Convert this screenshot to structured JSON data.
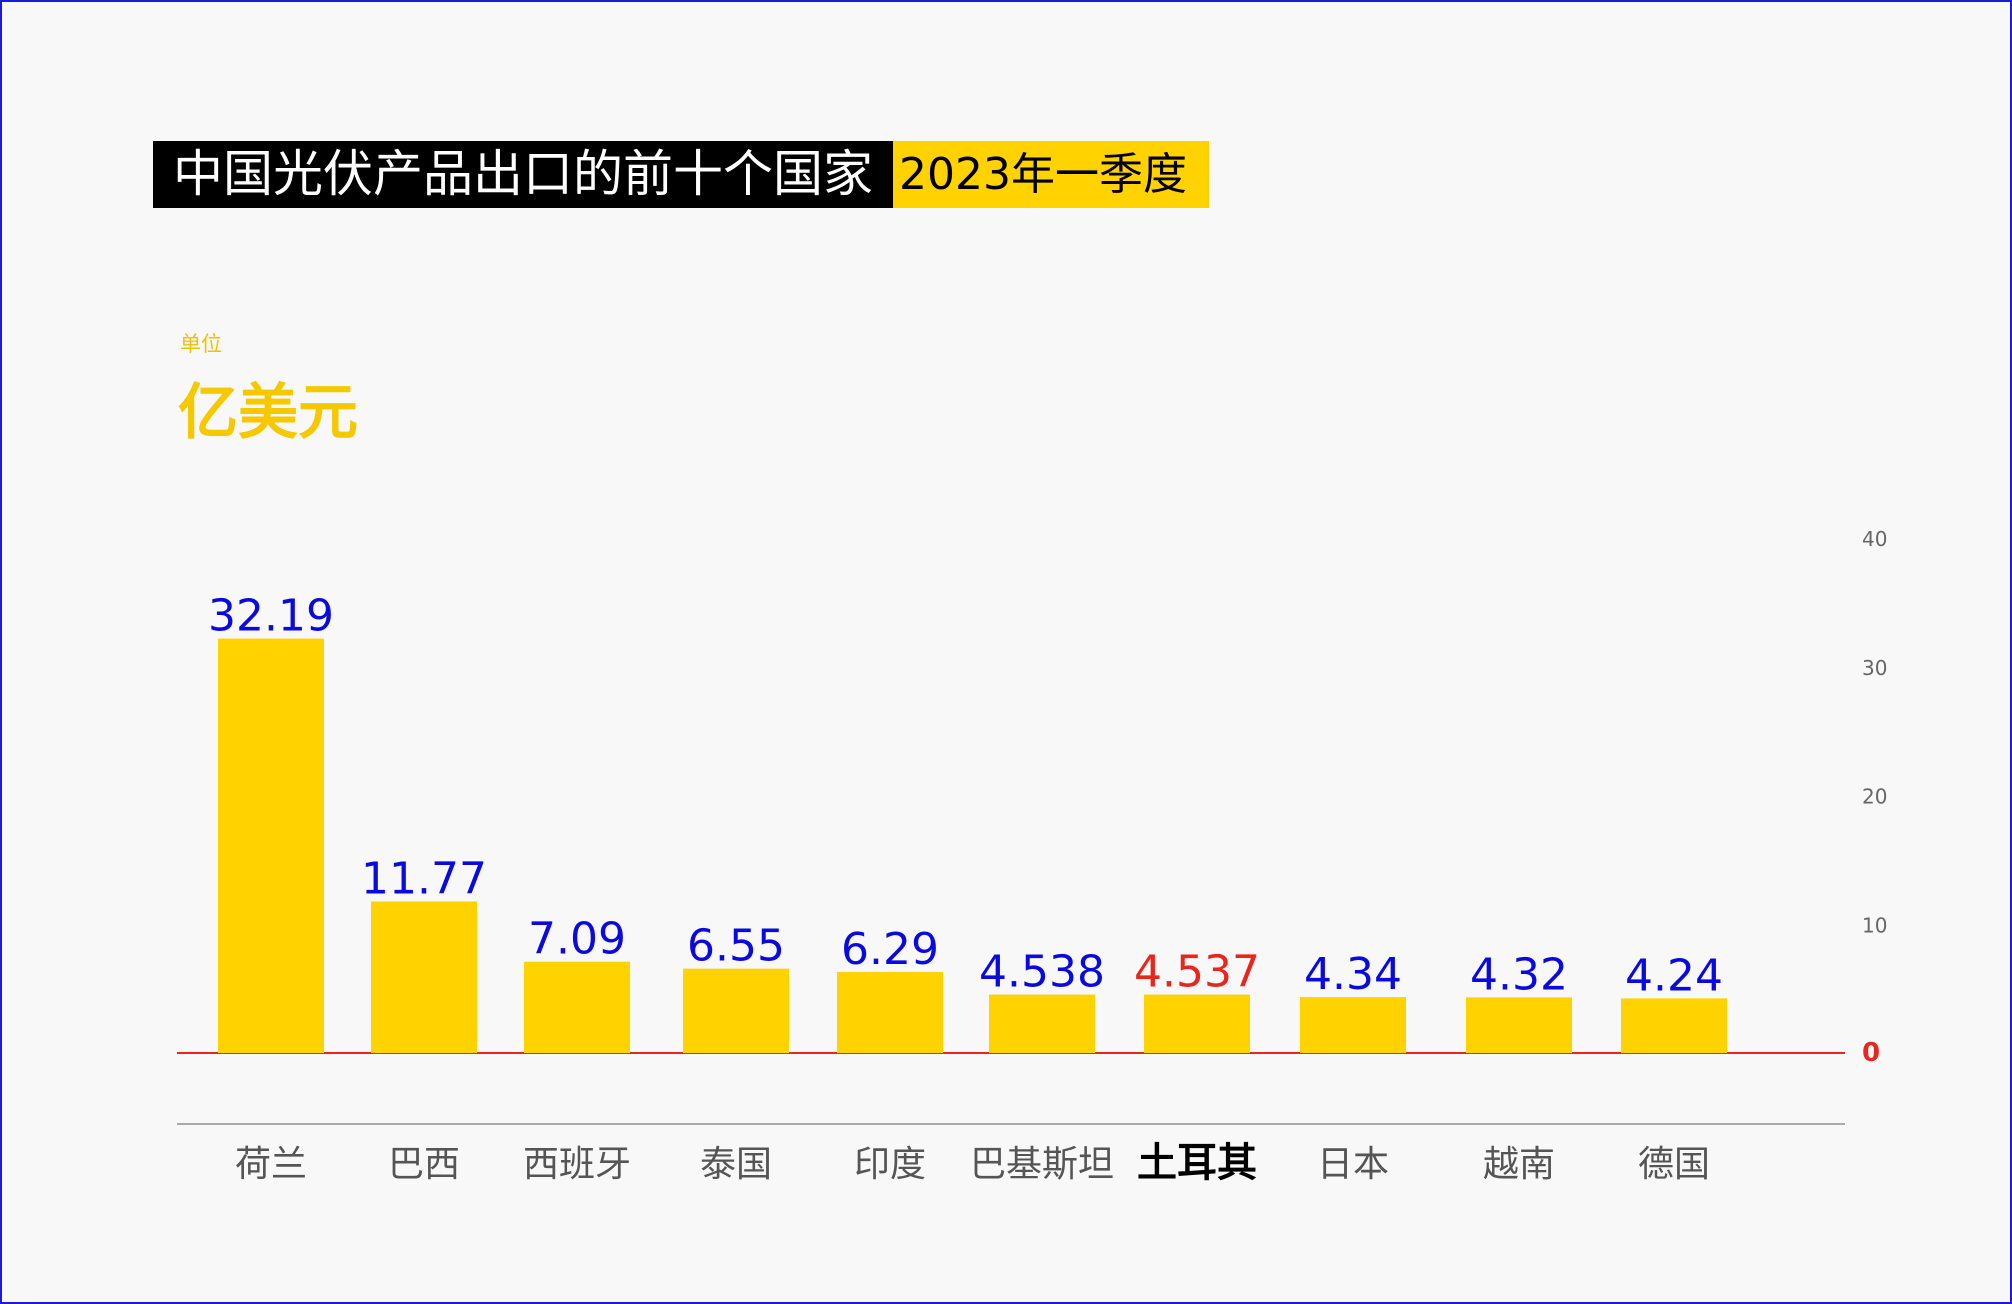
{
  "title": "中国光伏产品出口的前十个国家",
  "subtitle": "2023年一季度",
  "unit_caption": "单位",
  "unit": "亿美元",
  "chart_data": {
    "type": "bar",
    "title": "中国光伏产品出口的前十个国家",
    "subtitle": "2023年一季度",
    "ylabel": "亿美元",
    "xlabel": "",
    "categories": [
      "荷兰",
      "巴西",
      "西班牙",
      "泰国",
      "印度",
      "巴基斯坦",
      "土耳其",
      "日本",
      "越南",
      "德国"
    ],
    "values": [
      32.19,
      11.77,
      7.09,
      6.55,
      6.29,
      4.538,
      4.537,
      4.34,
      4.32,
      4.24
    ],
    "value_labels": [
      "32.19",
      "11.77",
      "7.09",
      "6.55",
      "6.29",
      "4.538",
      "4.537",
      "4.34",
      "4.32",
      "4.24"
    ],
    "highlight_category": "土耳其",
    "yticks": [
      0,
      10,
      20,
      30,
      40
    ],
    "ylim": [
      0,
      40
    ],
    "y_axis_position": "right",
    "grid": false,
    "colors": {
      "bar": "#ffd200",
      "value_label": "#0a0ae0",
      "highlight_value_label": "#e8261e",
      "baseline": "#e8261e"
    }
  }
}
